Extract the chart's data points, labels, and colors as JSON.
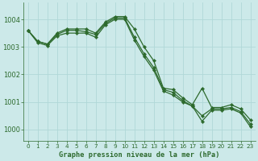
{
  "title": "Graphe pression niveau de la mer (hPa)",
  "bg_color": "#cce9e9",
  "grid_color": "#b0d8d8",
  "line_color": "#2d6a2d",
  "ylim": [
    999.6,
    1004.6
  ],
  "yticks": [
    1000,
    1001,
    1002,
    1003,
    1004
  ],
  "xlim": [
    -0.5,
    23.5
  ],
  "xticks": [
    0,
    1,
    2,
    3,
    4,
    5,
    6,
    7,
    8,
    9,
    10,
    11,
    12,
    13,
    14,
    15,
    16,
    17,
    18,
    19,
    20,
    21,
    22,
    23
  ],
  "line1": [
    1003.6,
    1003.2,
    1003.1,
    1003.5,
    1003.65,
    1003.65,
    1003.65,
    1003.5,
    1003.9,
    1004.1,
    1004.1,
    1003.65,
    1003.0,
    1002.5,
    1001.5,
    1001.45,
    1001.15,
    1000.9,
    1001.5,
    1000.8,
    1000.8,
    1000.9,
    1000.75,
    1000.35
  ],
  "line2": [
    1003.6,
    1003.2,
    1003.1,
    1003.45,
    1003.6,
    1003.6,
    1003.55,
    1003.45,
    1003.85,
    1004.05,
    1004.05,
    1003.35,
    1002.75,
    1002.25,
    1001.45,
    1001.35,
    1001.05,
    1000.85,
    1000.5,
    1000.75,
    1000.75,
    1000.8,
    1000.65,
    1000.2
  ],
  "line3": [
    1003.6,
    1003.15,
    1003.05,
    1003.4,
    1003.5,
    1003.5,
    1003.5,
    1003.35,
    1003.8,
    1004.0,
    1004.0,
    1003.25,
    1002.65,
    1002.15,
    1001.4,
    1001.25,
    1001.0,
    1000.85,
    1000.3,
    1000.7,
    1000.7,
    1000.75,
    1000.6,
    1000.1
  ],
  "figw": 3.2,
  "figh": 2.0,
  "dpi": 100
}
